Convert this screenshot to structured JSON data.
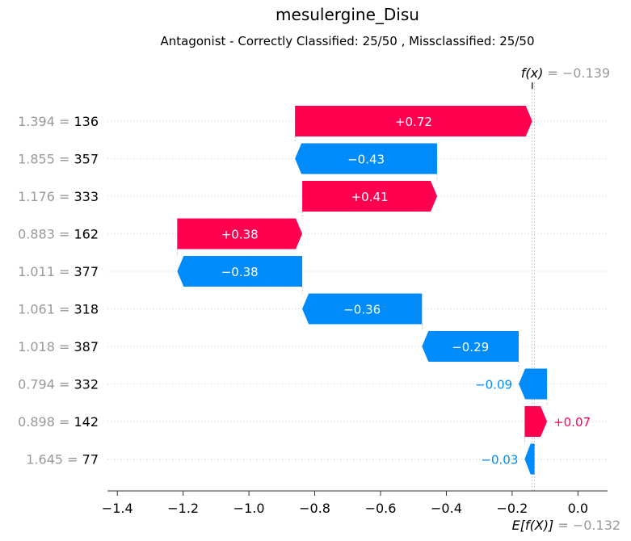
{
  "chart_data": {
    "type": "waterfall",
    "title": "mesulergine_Disu",
    "subtitle": "Antagonist - Correctly Classified: 25/50 , Missclassified: 25/50",
    "fx": {
      "label": "f(x)",
      "value_text": "= −0.139",
      "value": -0.139
    },
    "base": {
      "label": "E[f(X)]",
      "value_text": "= −0.132",
      "value": -0.132
    },
    "xlim": [
      -1.43,
      0.09
    ],
    "xticks": [
      -1.4,
      -1.2,
      -1.0,
      -0.8,
      -0.6,
      -0.4,
      -0.2,
      0.0
    ],
    "xtick_labels": [
      "−1.4",
      "−1.2",
      "−1.0",
      "−0.8",
      "−0.6",
      "−0.4",
      "−0.2",
      "0.0"
    ],
    "features": [
      {
        "value": "1.394",
        "name": "136",
        "start": -0.86,
        "end": -0.139,
        "label": "+0.72"
      },
      {
        "value": "1.855",
        "name": "357",
        "start": -0.428,
        "end": -0.86,
        "label": "−0.43"
      },
      {
        "value": "1.176",
        "name": "333",
        "start": -0.838,
        "end": -0.428,
        "label": "+0.41"
      },
      {
        "value": "0.883",
        "name": "162",
        "start": -1.218,
        "end": -0.838,
        "label": "+0.38"
      },
      {
        "value": "1.011",
        "name": "377",
        "start": -0.838,
        "end": -1.218,
        "label": "−0.38"
      },
      {
        "value": "1.061",
        "name": "318",
        "start": -0.474,
        "end": -0.838,
        "label": "−0.36"
      },
      {
        "value": "1.018",
        "name": "387",
        "start": -0.18,
        "end": -0.474,
        "label": "−0.29"
      },
      {
        "value": "0.794",
        "name": "332",
        "start": -0.094,
        "end": -0.18,
        "label": "−0.09"
      },
      {
        "value": "0.898",
        "name": "142",
        "start": -0.162,
        "end": -0.094,
        "label": "+0.07"
      },
      {
        "value": "1.645",
        "name": "77",
        "start": -0.132,
        "end": -0.162,
        "label": "−0.03"
      }
    ],
    "colors": {
      "positive": "#ff0051",
      "negative": "#008bfb",
      "muted": "#999999",
      "text": "#000000"
    }
  }
}
